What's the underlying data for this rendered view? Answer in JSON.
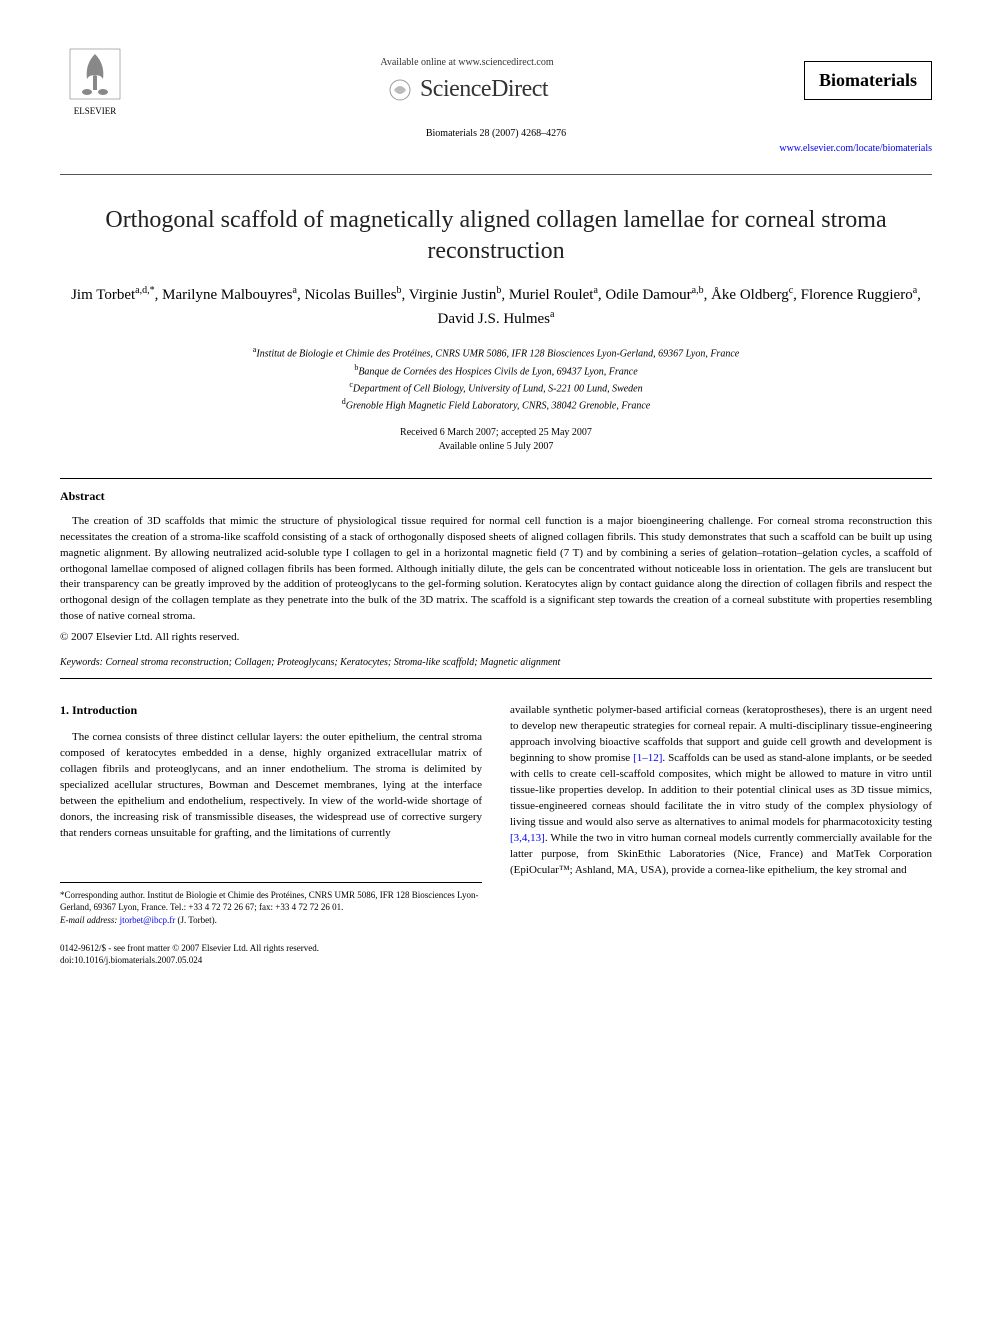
{
  "header": {
    "available_text": "Available online at www.sciencedirect.com",
    "sciencedirect": "ScienceDirect",
    "elsevier": "ELSEVIER",
    "journal_name": "Biomaterials",
    "citation": "Biomaterials 28 (2007) 4268–4276",
    "journal_link": "www.elsevier.com/locate/biomaterials"
  },
  "title": "Orthogonal scaffold of magnetically aligned collagen lamellae for corneal stroma reconstruction",
  "authors_html": "Jim Torbet<sup>a,d,*</sup>, Marilyne Malbouyres<sup>a</sup>, Nicolas Builles<sup>b</sup>, Virginie Justin<sup>b</sup>, Muriel Roulet<sup>a</sup>, Odile Damour<sup>a,b</sup>, Åke Oldberg<sup>c</sup>, Florence Ruggiero<sup>a</sup>, David J.S. Hulmes<sup>a</sup>",
  "affiliations": {
    "a": "Institut de Biologie et Chimie des Protéines, CNRS UMR 5086, IFR 128 Biosciences Lyon-Gerland, 69367 Lyon, France",
    "b": "Banque de Cornées des Hospices Civils de Lyon, 69437 Lyon, France",
    "c": "Department of Cell Biology, University of Lund, S-221 00 Lund, Sweden",
    "d": "Grenoble High Magnetic Field Laboratory, CNRS, 38042 Grenoble, France"
  },
  "dates": {
    "received": "Received 6 March 2007; accepted 25 May 2007",
    "online": "Available online 5 July 2007"
  },
  "abstract": {
    "heading": "Abstract",
    "text": "The creation of 3D scaffolds that mimic the structure of physiological tissue required for normal cell function is a major bioengineering challenge. For corneal stroma reconstruction this necessitates the creation of a stroma-like scaffold consisting of a stack of orthogonally disposed sheets of aligned collagen fibrils. This study demonstrates that such a scaffold can be built up using magnetic alignment. By allowing neutralized acid-soluble type I collagen to gel in a horizontal magnetic field (7 T) and by combining a series of gelation–rotation–gelation cycles, a scaffold of orthogonal lamellae composed of aligned collagen fibrils has been formed. Although initially dilute, the gels can be concentrated without noticeable loss in orientation. The gels are translucent but their transparency can be greatly improved by the addition of proteoglycans to the gel-forming solution. Keratocytes align by contact guidance along the direction of collagen fibrils and respect the orthogonal design of the collagen template as they penetrate into the bulk of the 3D matrix. The scaffold is a significant step towards the creation of a corneal substitute with properties resembling those of native corneal stroma.",
    "copyright": "© 2007 Elsevier Ltd. All rights reserved."
  },
  "keywords": {
    "label": "Keywords:",
    "text": "Corneal stroma reconstruction; Collagen; Proteoglycans; Keratocytes; Stroma-like scaffold; Magnetic alignment"
  },
  "intro": {
    "heading": "1. Introduction",
    "col1": "The cornea consists of three distinct cellular layers: the outer epithelium, the central stroma composed of keratocytes embedded in a dense, highly organized extracellular matrix of collagen fibrils and proteoglycans, and an inner endothelium. The stroma is delimited by specialized acellular structures, Bowman and Descemet membranes, lying at the interface between the epithelium and endothelium, respectively. In view of the world-wide shortage of donors, the increasing risk of transmissible diseases, the widespread use of corrective surgery that renders corneas unsuitable for grafting, and the limitations of currently",
    "col2_part1": "available synthetic polymer-based artificial corneas (keratoprostheses), there is an urgent need to develop new therapeutic strategies for corneal repair. A multi-disciplinary tissue-engineering approach involving bioactive scaffolds that support and guide cell growth and development is beginning to show promise ",
    "col2_ref1": "[1–12]",
    "col2_part2": ". Scaffolds can be used as stand-alone implants, or be seeded with cells to create cell-scaffold composites, which might be allowed to mature in vitro until tissue-like properties develop. In addition to their potential clinical uses as 3D tissue mimics, tissue-engineered corneas should facilitate the in vitro study of the complex physiology of living tissue and would also serve as alternatives to animal models for pharmacotoxicity testing ",
    "col2_ref2": "[3,4,13]",
    "col2_part3": ". While the two in vitro human corneal models currently commercially available for the latter purpose, from SkinEthic Laboratories (Nice, France) and MatTek Corporation (EpiOcular™; Ashland, MA, USA), provide a cornea-like epithelium, the key stromal and"
  },
  "corresponding": {
    "text": "*Corresponding author. Institut de Biologie et Chimie des Protéines, CNRS UMR 5086, IFR 128 Biosciences Lyon-Gerland, 69367 Lyon, France. Tel.: +33 4 72 72 26 67; fax: +33 4 72 72 26 01.",
    "email_label": "E-mail address:",
    "email": "jtorbet@ibcp.fr",
    "email_name": "(J. Torbet)."
  },
  "footer": {
    "left": "0142-9612/$ - see front matter © 2007 Elsevier Ltd. All rights reserved.",
    "doi": "doi:10.1016/j.biomaterials.2007.05.024"
  },
  "colors": {
    "link": "#0000ee",
    "text": "#000000",
    "bg": "#ffffff"
  }
}
